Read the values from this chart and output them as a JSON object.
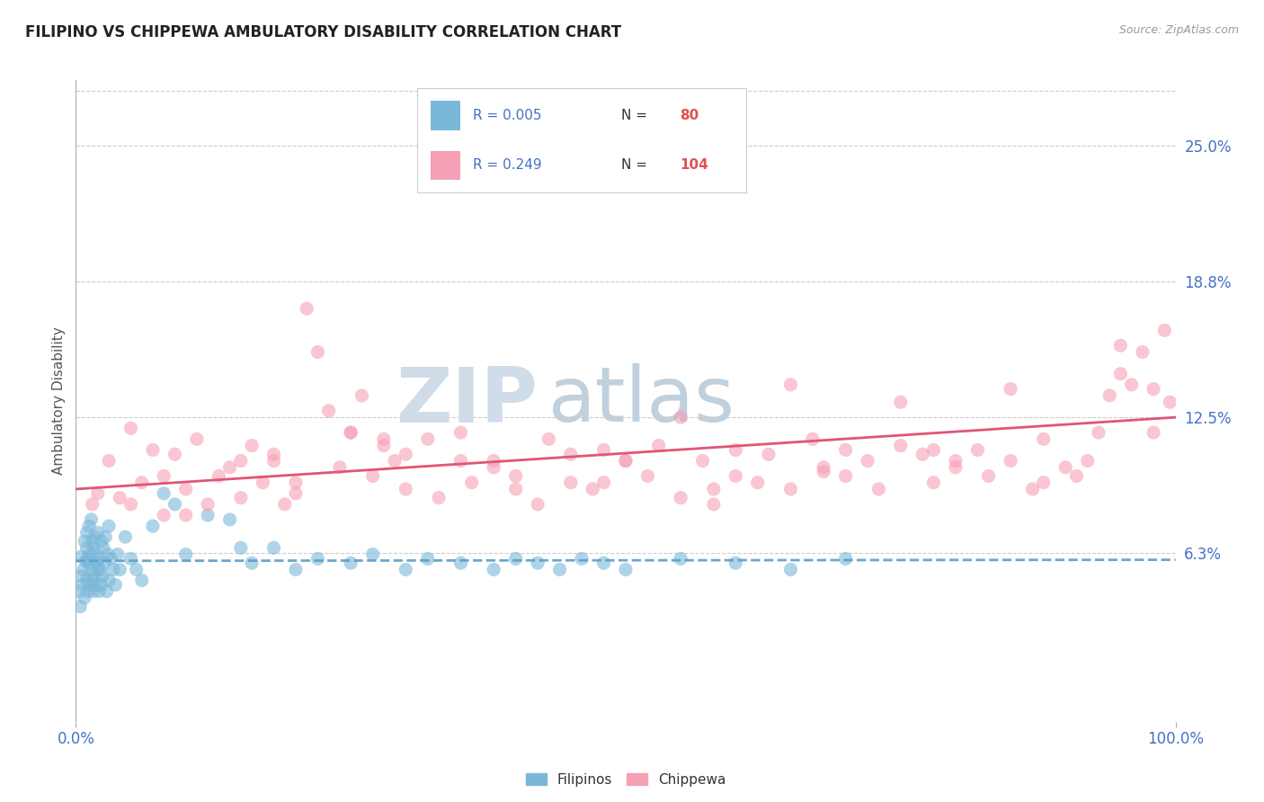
{
  "title": "FILIPINO VS CHIPPEWA AMBULATORY DISABILITY CORRELATION CHART",
  "source": "Source: ZipAtlas.com",
  "ylabel": "Ambulatory Disability",
  "xlim": [
    0,
    100
  ],
  "ylim": [
    -1.5,
    28
  ],
  "ytick_vals": [
    6.25,
    12.5,
    18.75,
    25.0
  ],
  "ytick_labels": [
    "6.3%",
    "12.5%",
    "18.8%",
    "25.0%"
  ],
  "xtick_vals": [
    0,
    100
  ],
  "xtick_labels": [
    "0.0%",
    "100.0%"
  ],
  "legend_line1": "R = 0.005   N =   80",
  "legend_line2": "R = 0.249   N = 104",
  "legend_label1": "Filipinos",
  "legend_label2": "Chippewa",
  "color_filipino": "#7ab8d9",
  "color_chippewa": "#f5a0b5",
  "color_line_filipino": "#5b9ec9",
  "color_line_chippewa": "#e05575",
  "color_title": "#222222",
  "color_axis_label": "#555555",
  "color_tick_labels": "#4472C4",
  "color_legend_r": "#4472C4",
  "color_legend_n_label": "#222222",
  "color_legend_n_val": "#e05050",
  "color_watermark_zip": "#c8d8e8",
  "color_watermark_atlas": "#b0c8dc",
  "background_color": "#ffffff",
  "grid_color": "#cccccc",
  "filipino_x": [
    0.3,
    0.4,
    0.5,
    0.5,
    0.6,
    0.7,
    0.8,
    0.8,
    0.9,
    1.0,
    1.0,
    1.0,
    1.1,
    1.1,
    1.2,
    1.2,
    1.3,
    1.3,
    1.4,
    1.4,
    1.5,
    1.5,
    1.6,
    1.6,
    1.7,
    1.7,
    1.8,
    1.8,
    1.9,
    2.0,
    2.0,
    2.1,
    2.1,
    2.2,
    2.3,
    2.3,
    2.4,
    2.5,
    2.6,
    2.7,
    2.8,
    2.9,
    3.0,
    3.0,
    3.2,
    3.4,
    3.6,
    3.8,
    4.0,
    4.5,
    5.0,
    5.5,
    6.0,
    7.0,
    8.0,
    9.0,
    10.0,
    12.0,
    14.0,
    15.0,
    16.0,
    18.0,
    20.0,
    22.0,
    25.0,
    27.0,
    30.0,
    32.0,
    35.0,
    38.0,
    40.0,
    42.0,
    44.0,
    46.0,
    48.0,
    50.0,
    55.0,
    60.0,
    65.0,
    70.0
  ],
  "filipino_y": [
    4.5,
    3.8,
    5.2,
    6.1,
    4.8,
    5.5,
    6.8,
    4.2,
    5.9,
    5.0,
    6.5,
    7.2,
    4.5,
    6.0,
    5.8,
    7.5,
    4.8,
    6.2,
    5.5,
    7.8,
    5.0,
    6.8,
    4.5,
    6.5,
    5.2,
    7.0,
    4.8,
    6.2,
    5.8,
    5.5,
    7.2,
    4.5,
    6.0,
    5.5,
    4.8,
    6.8,
    5.2,
    6.5,
    5.8,
    7.0,
    4.5,
    6.2,
    5.0,
    7.5,
    6.0,
    5.5,
    4.8,
    6.2,
    5.5,
    7.0,
    6.0,
    5.5,
    5.0,
    7.5,
    9.0,
    8.5,
    6.2,
    8.0,
    7.8,
    6.5,
    5.8,
    6.5,
    5.5,
    6.0,
    5.8,
    6.2,
    5.5,
    6.0,
    5.8,
    5.5,
    6.0,
    5.8,
    5.5,
    6.0,
    5.8,
    5.5,
    6.0,
    5.8,
    5.5,
    6.0
  ],
  "chippewa_x": [
    1.5,
    2.0,
    3.0,
    4.0,
    5.0,
    6.0,
    7.0,
    8.0,
    9.0,
    10.0,
    11.0,
    12.0,
    13.0,
    14.0,
    15.0,
    16.0,
    17.0,
    18.0,
    19.0,
    20.0,
    21.0,
    22.0,
    23.0,
    24.0,
    25.0,
    26.0,
    27.0,
    28.0,
    29.0,
    30.0,
    32.0,
    33.0,
    35.0,
    36.0,
    38.0,
    40.0,
    42.0,
    43.0,
    45.0,
    47.0,
    48.0,
    50.0,
    52.0,
    53.0,
    55.0,
    57.0,
    58.0,
    60.0,
    62.0,
    63.0,
    65.0,
    67.0,
    68.0,
    70.0,
    72.0,
    73.0,
    75.0,
    77.0,
    78.0,
    80.0,
    82.0,
    83.0,
    85.0,
    87.0,
    88.0,
    90.0,
    91.0,
    92.0,
    93.0,
    94.0,
    95.0,
    96.0,
    97.0,
    98.0,
    99.0,
    99.5,
    10.0,
    20.0,
    30.0,
    40.0,
    50.0,
    60.0,
    70.0,
    80.0,
    5.0,
    15.0,
    25.0,
    35.0,
    45.0,
    55.0,
    65.0,
    75.0,
    85.0,
    95.0,
    8.0,
    18.0,
    28.0,
    38.0,
    48.0,
    58.0,
    68.0,
    78.0,
    88.0,
    98.0
  ],
  "chippewa_y": [
    8.5,
    9.0,
    10.5,
    8.8,
    12.0,
    9.5,
    11.0,
    8.0,
    10.8,
    9.2,
    11.5,
    8.5,
    9.8,
    10.2,
    8.8,
    11.2,
    9.5,
    10.8,
    8.5,
    9.0,
    17.5,
    15.5,
    12.8,
    10.2,
    11.8,
    13.5,
    9.8,
    11.2,
    10.5,
    9.2,
    11.5,
    8.8,
    11.8,
    9.5,
    10.2,
    9.8,
    8.5,
    11.5,
    10.8,
    9.2,
    11.0,
    10.5,
    9.8,
    11.2,
    8.8,
    10.5,
    9.2,
    11.0,
    9.5,
    10.8,
    9.2,
    11.5,
    10.0,
    9.8,
    10.5,
    9.2,
    11.2,
    10.8,
    9.5,
    10.2,
    11.0,
    9.8,
    10.5,
    9.2,
    11.5,
    10.2,
    9.8,
    10.5,
    11.8,
    13.5,
    14.5,
    14.0,
    15.5,
    13.8,
    16.5,
    13.2,
    8.0,
    9.5,
    10.8,
    9.2,
    10.5,
    9.8,
    11.0,
    10.5,
    8.5,
    10.5,
    11.8,
    10.5,
    9.5,
    12.5,
    14.0,
    13.2,
    13.8,
    15.8,
    9.8,
    10.5,
    11.5,
    10.5,
    9.5,
    8.5,
    10.2,
    11.0,
    9.5,
    11.8
  ],
  "line_filipino_x0": 0,
  "line_filipino_x1": 100,
  "line_filipino_y0": 5.9,
  "line_filipino_y1": 5.95,
  "line_chippewa_x0": 0,
  "line_chippewa_x1": 100,
  "line_chippewa_y0": 9.2,
  "line_chippewa_y1": 12.5
}
